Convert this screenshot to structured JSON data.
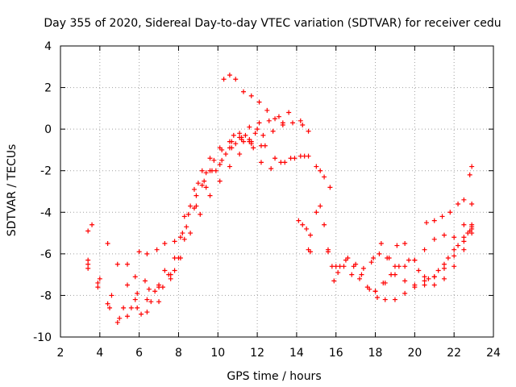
{
  "chart_data": {
    "type": "scatter",
    "title": "Day 355 of 2020, Sidereal Day-to-day VTEC variation (SDTVAR) for receiver cedu",
    "xlabel": "GPS time / hours",
    "ylabel": "SDTVAR / TECUs",
    "xlim": [
      2,
      24
    ],
    "ylim": [
      -10,
      4
    ],
    "x_ticks": [
      2,
      4,
      6,
      8,
      10,
      12,
      14,
      16,
      18,
      20,
      22,
      24
    ],
    "y_ticks": [
      -10,
      -8,
      -6,
      -4,
      -2,
      0,
      2,
      4
    ],
    "grid": true,
    "marker": "+",
    "series_color": "#ff0000",
    "series": [
      {
        "name": "s1",
        "x": [
          3.4,
          3.9,
          4.4,
          4.9,
          5.4,
          5.9,
          6.4,
          7.0,
          7.6,
          8.1,
          8.5,
          8.9,
          9.3,
          9.7,
          10.2,
          10.7,
          11.2,
          11.7,
          12.2
        ],
        "y": [
          -6.5,
          -7.4,
          -8.4,
          -9.3,
          -9.0,
          -8.6,
          -8.2,
          -7.6,
          -7.0,
          -5.2,
          -4.1,
          -3.2,
          -2.5,
          -2.0,
          -1.5,
          -0.9,
          -0.4,
          -0.6,
          -0.8
        ]
      },
      {
        "name": "s2",
        "x": [
          3.4,
          3.9,
          4.5,
          5.0,
          5.6,
          6.1,
          6.6,
          7.2,
          7.8,
          8.3,
          8.8,
          9.2,
          9.6,
          10.1,
          10.6,
          11.1,
          11.6,
          12.1,
          12.6,
          13.1,
          13.6,
          14.2,
          14.6
        ],
        "y": [
          -6.7,
          -7.6,
          -8.6,
          -9.1,
          -8.6,
          -8.9,
          -8.3,
          -7.6,
          -6.8,
          -5.3,
          -3.8,
          -2.7,
          -2.0,
          -1.7,
          -0.9,
          -0.4,
          0.1,
          0.3,
          0.4,
          0.6,
          0.8,
          0.4,
          -0.1
        ]
      },
      {
        "name": "s3",
        "x": [
          3.4,
          4.0,
          4.6,
          5.2,
          5.8,
          6.4,
          7.0,
          7.6,
          8.1,
          8.6,
          9.1,
          9.6,
          10.1,
          10.6,
          11.1,
          11.6,
          12.0
        ],
        "y": [
          -6.3,
          -7.2,
          -8.0,
          -8.6,
          -8.2,
          -8.8,
          -8.3,
          -7.2,
          -6.2,
          -5.0,
          -4.1,
          -3.2,
          -2.5,
          -1.8,
          -1.2,
          -0.6,
          0.0
        ]
      },
      {
        "name": "s4",
        "x": [
          4.4,
          4.9,
          5.4,
          5.9,
          6.5,
          7.0,
          7.5,
          8.0,
          8.4,
          8.9,
          9.4,
          9.9,
          10.4,
          10.9,
          11.4,
          11.9,
          12.4,
          12.9,
          13.4,
          13.9,
          14.4
        ],
        "y": [
          -5.5,
          -6.5,
          -7.5,
          -7.9,
          -7.7,
          -7.5,
          -7.0,
          -6.2,
          -4.7,
          -3.7,
          -2.8,
          -2.0,
          -1.2,
          -0.7,
          -0.3,
          -0.2,
          -0.8,
          -1.4,
          -1.6,
          -1.4,
          -1.3
        ]
      },
      {
        "name": "s5",
        "x": [
          5.4,
          5.8,
          6.3,
          6.8,
          7.3,
          7.8,
          8.2,
          8.6,
          9.0,
          9.4,
          9.8,
          10.2,
          10.7,
          11.2,
          11.7,
          12.2,
          12.7,
          13.2,
          13.7,
          14.2,
          14.6
        ],
        "y": [
          -6.5,
          -7.1,
          -7.3,
          -7.8,
          -6.8,
          -6.2,
          -5.0,
          -3.7,
          -2.6,
          -2.1,
          -1.5,
          -1.0,
          -0.6,
          -0.5,
          -0.7,
          -1.6,
          -1.9,
          -1.6,
          -1.4,
          -1.3,
          -1.3
        ]
      },
      {
        "name": "s6",
        "x": [
          6.0,
          6.4,
          6.9,
          7.3,
          7.8,
          8.3,
          8.8,
          9.2,
          9.6,
          10.1,
          10.6,
          11.1,
          11.6
        ],
        "y": [
          -5.9,
          -6.0,
          -5.8,
          -5.5,
          -5.4,
          -4.2,
          -2.9,
          -2.0,
          -1.4,
          -0.9,
          -0.6,
          -0.2,
          -0.5
        ]
      },
      {
        "name": "s7",
        "x": [
          10.3,
          10.6,
          10.9,
          11.3,
          11.7,
          12.1,
          12.5,
          12.9,
          13.3
        ],
        "y": [
          2.4,
          2.6,
          2.4,
          1.8,
          1.6,
          1.3,
          0.9,
          0.5,
          0.3
        ]
      },
      {
        "name": "s8",
        "x": [
          10.8,
          11.3,
          11.8,
          12.3,
          12.8,
          13.3,
          13.8,
          14.3
        ],
        "y": [
          -0.3,
          -0.6,
          -0.9,
          -0.3,
          -0.1,
          0.2,
          0.3,
          0.2
        ]
      },
      {
        "name": "s9",
        "x": [
          3.4,
          3.6
        ],
        "y": [
          -4.9,
          -4.6
        ]
      },
      {
        "name": "s10",
        "x": [
          14.1,
          14.3,
          14.5,
          14.7
        ],
        "y": [
          -4.4,
          -4.6,
          -4.8,
          -5.1
        ]
      },
      {
        "name": "s11",
        "x": [
          14.6,
          14.7
        ],
        "y": [
          -5.8,
          -5.9
        ]
      },
      {
        "name": "s12",
        "x": [
          15.0,
          15.2,
          15.4,
          15.7
        ],
        "y": [
          -1.8,
          -2.0,
          -2.3,
          -2.8
        ]
      },
      {
        "name": "s13",
        "x": [
          15.0,
          15.2,
          15.4,
          15.6,
          15.8,
          16.1,
          16.5,
          16.9,
          17.3,
          17.7,
          18.1,
          18.5,
          19.0,
          19.5,
          20.0,
          20.5,
          21.0,
          21.5,
          22.0,
          22.5,
          22.8
        ],
        "y": [
          -4.0,
          -3.7,
          -4.6,
          -5.8,
          -6.6,
          -6.9,
          -6.3,
          -6.6,
          -7.0,
          -7.7,
          -8.1,
          -8.2,
          -8.2,
          -7.9,
          -7.5,
          -7.3,
          -7.1,
          -6.7,
          -6.1,
          -5.4,
          -4.9
        ]
      },
      {
        "name": "s14",
        "x": [
          15.6,
          15.9,
          16.2,
          16.6,
          17.0,
          17.4,
          17.8,
          18.2,
          18.6,
          19.0,
          19.5,
          20.0,
          20.5,
          21.0,
          21.5,
          22.0,
          22.5,
          22.9
        ],
        "y": [
          -5.9,
          -7.3,
          -6.6,
          -6.2,
          -6.5,
          -6.7,
          -6.4,
          -6.0,
          -6.2,
          -6.6,
          -7.3,
          -7.6,
          -7.5,
          -7.1,
          -6.5,
          -5.8,
          -5.2,
          -4.8
        ]
      },
      {
        "name": "s15",
        "x": [
          16.0,
          16.4,
          16.8,
          17.2,
          17.6,
          18.0,
          18.4,
          18.8,
          19.2,
          19.7,
          20.2,
          20.7,
          21.2,
          21.7,
          22.2,
          22.7,
          22.9
        ],
        "y": [
          -6.6,
          -6.6,
          -7.0,
          -7.2,
          -7.6,
          -7.8,
          -7.4,
          -7.0,
          -6.6,
          -6.3,
          -6.8,
          -7.2,
          -6.8,
          -6.2,
          -5.6,
          -5.0,
          -4.7
        ]
      },
      {
        "name": "s16",
        "x": [
          17.9,
          18.3,
          18.7,
          19.1,
          19.5,
          20.0,
          20.5,
          21.0,
          21.5,
          22.0,
          22.5,
          22.9
        ],
        "y": [
          -6.2,
          -5.5,
          -6.2,
          -5.6,
          -5.5,
          -6.3,
          -7.1,
          -7.5,
          -7.2,
          -6.6,
          -5.8,
          -5.0
        ]
      },
      {
        "name": "s17",
        "x": [
          18.0,
          18.5,
          19.0,
          19.5,
          20.0,
          20.5,
          21.0,
          21.5,
          22.0,
          22.5,
          22.9
        ],
        "y": [
          -7.8,
          -7.4,
          -7.0,
          -6.6,
          -6.3,
          -5.8,
          -5.3,
          -5.1,
          -5.2,
          -4.6,
          -4.6
        ]
      },
      {
        "name": "s18",
        "x": [
          20.6,
          21.0,
          21.4,
          21.8,
          22.2,
          22.5,
          22.9
        ],
        "y": [
          -4.5,
          -4.4,
          -4.2,
          -4.0,
          -3.6,
          -3.4,
          -3.6
        ]
      },
      {
        "name": "s19",
        "x": [
          22.8,
          22.9
        ],
        "y": [
          -2.2,
          -1.8
        ]
      }
    ]
  }
}
